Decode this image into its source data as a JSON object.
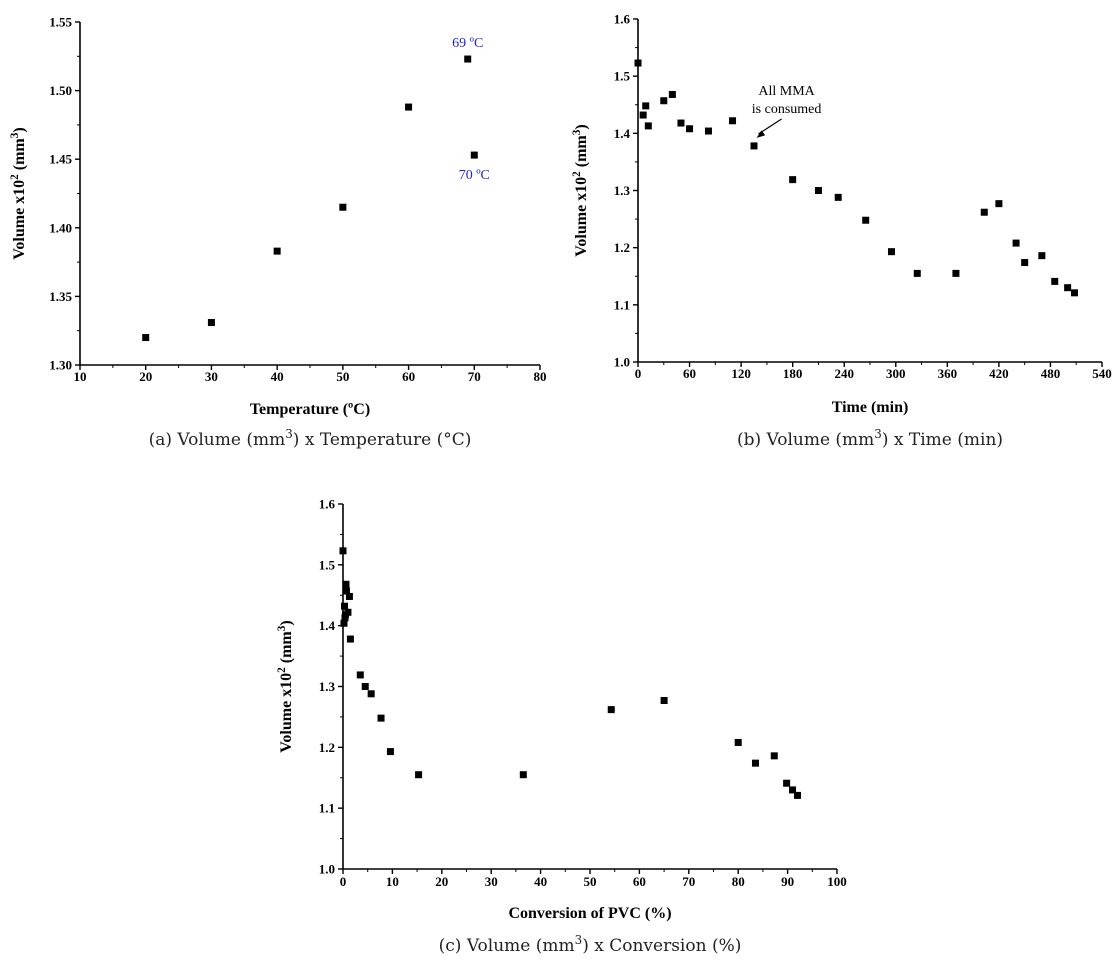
{
  "chart_data": [
    {
      "id": "a",
      "type": "scatter",
      "caption": "(a) Volume (mm³) x Temperature (°C)",
      "xlabel": "Temperature (ºC)",
      "ylabel": "Volume x10² (mm³)",
      "xlim": [
        10,
        80
      ],
      "ylim": [
        1.3,
        1.55
      ],
      "xticks": [
        10,
        20,
        30,
        40,
        50,
        60,
        70,
        80
      ],
      "xtick_labels": [
        "10",
        "20",
        "30",
        "40",
        "50",
        "60",
        "70",
        "80"
      ],
      "yticks": [
        1.3,
        1.35,
        1.4,
        1.45,
        1.5,
        1.55
      ],
      "ytick_labels": [
        "1.30",
        "1.35",
        "1.40",
        "1.45",
        "1.50",
        "1.55"
      ],
      "grid": false,
      "points": [
        {
          "x": 20,
          "y": 1.32
        },
        {
          "x": 30,
          "y": 1.331
        },
        {
          "x": 40,
          "y": 1.383
        },
        {
          "x": 50,
          "y": 1.415
        },
        {
          "x": 60,
          "y": 1.488
        },
        {
          "x": 69,
          "y": 1.523
        },
        {
          "x": 70,
          "y": 1.453
        }
      ],
      "annotations": [
        {
          "text": "69 ºC",
          "x": 69,
          "y": 1.523,
          "color": "#1f1fd8",
          "placement": "above"
        },
        {
          "text": "70 ºC",
          "x": 70,
          "y": 1.453,
          "color": "#1f1fd8",
          "placement": "below"
        }
      ]
    },
    {
      "id": "b",
      "type": "scatter",
      "caption": "(b) Volume (mm³) x Time (min)",
      "xlabel": "Time (min)",
      "ylabel": "Volume x10² (mm³)",
      "xlim": [
        0,
        540
      ],
      "ylim": [
        1.0,
        1.6
      ],
      "xticks": [
        0,
        60,
        120,
        180,
        240,
        300,
        360,
        420,
        480,
        540
      ],
      "xtick_labels": [
        "0",
        "60",
        "120",
        "180",
        "240",
        "300",
        "360",
        "420",
        "480",
        "540"
      ],
      "yticks": [
        1.0,
        1.1,
        1.2,
        1.3,
        1.4,
        1.5,
        1.6
      ],
      "ytick_labels": [
        "1.0",
        "1.1",
        "1.2",
        "1.3",
        "1.4",
        "1.5",
        "1.6"
      ],
      "grid": false,
      "points": [
        {
          "x": 0,
          "y": 1.523
        },
        {
          "x": 6,
          "y": 1.432
        },
        {
          "x": 9,
          "y": 1.448
        },
        {
          "x": 12,
          "y": 1.413
        },
        {
          "x": 30,
          "y": 1.457
        },
        {
          "x": 40,
          "y": 1.468
        },
        {
          "x": 50,
          "y": 1.418
        },
        {
          "x": 60,
          "y": 1.408
        },
        {
          "x": 82,
          "y": 1.404
        },
        {
          "x": 110,
          "y": 1.422
        },
        {
          "x": 135,
          "y": 1.378
        },
        {
          "x": 180,
          "y": 1.319
        },
        {
          "x": 210,
          "y": 1.3
        },
        {
          "x": 233,
          "y": 1.288
        },
        {
          "x": 265,
          "y": 1.248
        },
        {
          "x": 295,
          "y": 1.193
        },
        {
          "x": 325,
          "y": 1.155
        },
        {
          "x": 370,
          "y": 1.155
        },
        {
          "x": 403,
          "y": 1.262
        },
        {
          "x": 420,
          "y": 1.277
        },
        {
          "x": 440,
          "y": 1.208
        },
        {
          "x": 450,
          "y": 1.174
        },
        {
          "x": 470,
          "y": 1.186
        },
        {
          "x": 485,
          "y": 1.141
        },
        {
          "x": 500,
          "y": 1.13
        },
        {
          "x": 508,
          "y": 1.121
        }
      ],
      "annotations": [
        {
          "lines": [
            "All MMA",
            "is consumed"
          ],
          "arrow_to": {
            "x": 138,
            "y": 1.392
          },
          "color": "#000000"
        }
      ]
    },
    {
      "id": "c",
      "type": "scatter",
      "caption": "(c) Volume (mm³) x Conversion (%)",
      "xlabel": "Conversion of PVC (%)",
      "ylabel": "Volume x10² (mm³)",
      "xlim": [
        0,
        100
      ],
      "ylim": [
        1.0,
        1.6
      ],
      "xticks": [
        0,
        10,
        20,
        30,
        40,
        50,
        60,
        70,
        80,
        90,
        100
      ],
      "xtick_labels": [
        "0",
        "10",
        "20",
        "30",
        "40",
        "50",
        "60",
        "70",
        "80",
        "90",
        "100"
      ],
      "yticks": [
        1.0,
        1.1,
        1.2,
        1.3,
        1.4,
        1.5,
        1.6
      ],
      "ytick_labels": [
        "1.0",
        "1.1",
        "1.2",
        "1.3",
        "1.4",
        "1.5",
        "1.6"
      ],
      "grid": false,
      "points": [
        {
          "x": 0.0,
          "y": 1.523
        },
        {
          "x": 0.3,
          "y": 1.432
        },
        {
          "x": 0.6,
          "y": 1.468
        },
        {
          "x": 0.7,
          "y": 1.457
        },
        {
          "x": 0.4,
          "y": 1.413
        },
        {
          "x": 1.0,
          "y": 1.422
        },
        {
          "x": 1.3,
          "y": 1.448
        },
        {
          "x": 0.5,
          "y": 1.418
        },
        {
          "x": 0.2,
          "y": 1.404
        },
        {
          "x": 1.5,
          "y": 1.378
        },
        {
          "x": 3.5,
          "y": 1.319
        },
        {
          "x": 4.5,
          "y": 1.3
        },
        {
          "x": 5.7,
          "y": 1.288
        },
        {
          "x": 7.7,
          "y": 1.248
        },
        {
          "x": 9.6,
          "y": 1.193
        },
        {
          "x": 15.3,
          "y": 1.155
        },
        {
          "x": 36.5,
          "y": 1.155
        },
        {
          "x": 54.3,
          "y": 1.262
        },
        {
          "x": 65.0,
          "y": 1.277
        },
        {
          "x": 80.0,
          "y": 1.208
        },
        {
          "x": 83.5,
          "y": 1.174
        },
        {
          "x": 87.3,
          "y": 1.186
        },
        {
          "x": 89.8,
          "y": 1.141
        },
        {
          "x": 91.0,
          "y": 1.13
        },
        {
          "x": 92.0,
          "y": 1.121
        }
      ],
      "annotations": []
    }
  ]
}
